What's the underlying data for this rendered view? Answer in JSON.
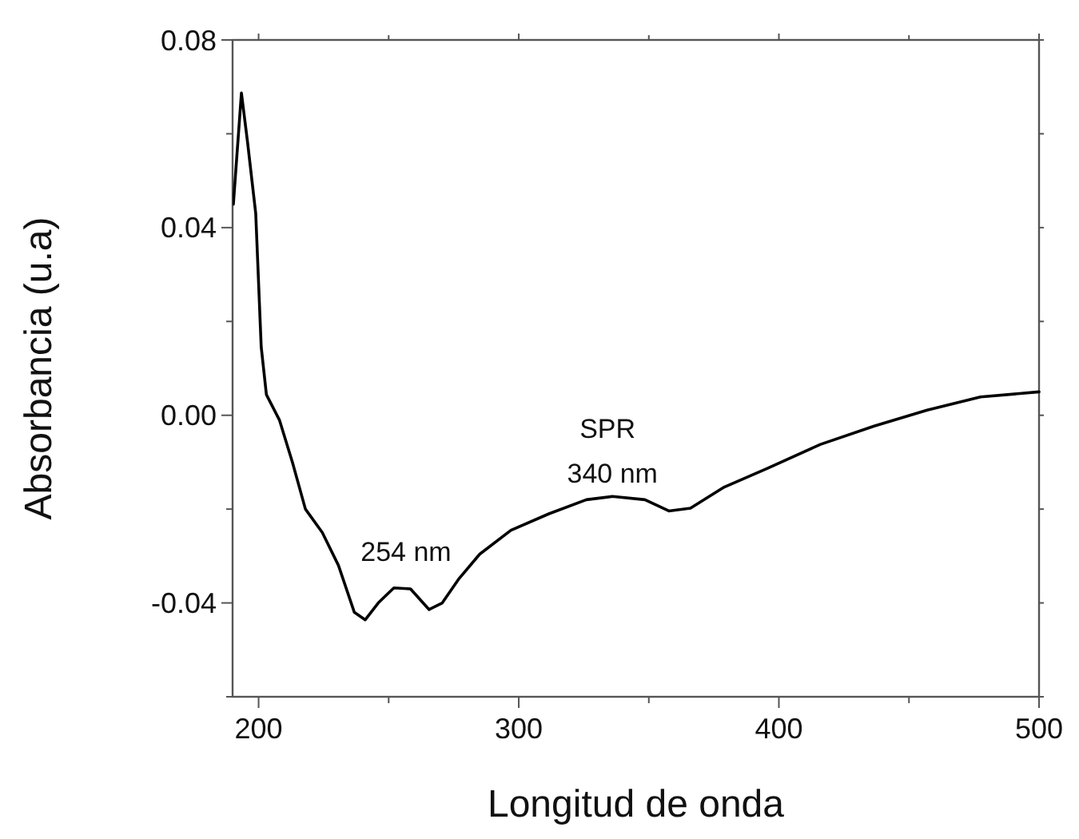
{
  "chart_data": {
    "type": "line",
    "xlabel": "Longitud de onda",
    "ylabel": "Absorbancia (u.a)",
    "xlim": [
      190,
      500
    ],
    "ylim": [
      -0.06,
      0.08
    ],
    "xticks": [
      200,
      {
        "value": 250,
        "label": null
      },
      300,
      {
        "value": 350,
        "label": null
      },
      400,
      {
        "value": 450,
        "label": null
      },
      500
    ],
    "yticks": [
      {
        "value": -0.06,
        "label": null
      },
      -0.04,
      {
        "value": -0.02,
        "label": null
      },
      {
        "value": 0,
        "label": "0.00"
      },
      {
        "value": 0.02,
        "label": null
      },
      0.04,
      {
        "value": 0.06,
        "label": null
      },
      0.08
    ],
    "grid": false,
    "marker": "none",
    "line_style": "solid",
    "annotations": [
      "254 nm",
      "SPR",
      "340 nm"
    ],
    "series": [
      {
        "color": "#000000",
        "x": [
          190.3,
          193.4,
          195.8,
          198.9,
          201,
          203,
          208,
          213,
          218,
          224.5,
          230.7,
          236.8,
          241,
          246,
          252,
          258.4,
          265.5,
          270.6,
          276.8,
          285,
          297,
          311.6,
          326,
          336,
          348.5,
          357.7,
          366,
          379,
          395.6,
          416,
          436.6,
          457,
          477.5,
          500
        ],
        "values": [
          0.045,
          0.0687,
          0.058,
          0.043,
          0.0146,
          0.0044,
          -0.001,
          -0.01,
          -0.02,
          -0.025,
          -0.032,
          -0.042,
          -0.0436,
          -0.04,
          -0.0368,
          -0.037,
          -0.0414,
          -0.04,
          -0.035,
          -0.0296,
          -0.0245,
          -0.021,
          -0.018,
          -0.0173,
          -0.018,
          -0.0204,
          -0.0198,
          -0.0153,
          -0.0113,
          -0.0062,
          -0.0023,
          0.0011,
          0.0039,
          0.005
        ]
      }
    ]
  }
}
